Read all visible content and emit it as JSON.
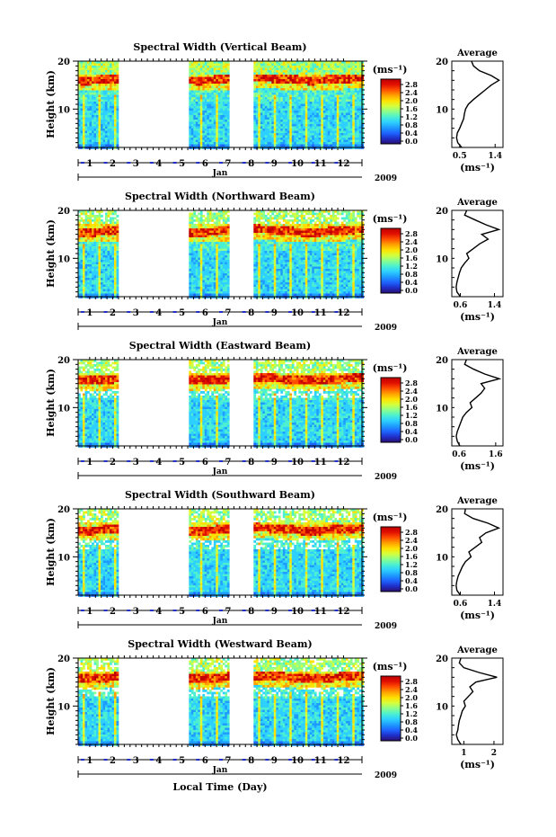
{
  "figure": {
    "xlabel": "Local Time (Day)",
    "month_label": "Jan",
    "year_label": "2009",
    "unit_label": "(ms⁻¹)",
    "average_title": "Average",
    "average_xlabel": "(ms⁻¹)",
    "ylabel": "Height (km)"
  },
  "colors": {
    "colormap": [
      "#2a0e6e",
      "#1f2fc8",
      "#1e64ff",
      "#1e9cff",
      "#2ed0ff",
      "#4cf0d0",
      "#8cff8c",
      "#d4ff3c",
      "#ffe000",
      "#ffa000",
      "#ff5000",
      "#e01000",
      "#c00000"
    ]
  },
  "chart_data": [
    {
      "type": "heatmap",
      "title": "Spectral Width (Vertical Beam)",
      "x_ticks": [
        "1",
        "2",
        "3",
        "4",
        "5",
        "6",
        "7",
        "8",
        "9",
        "10",
        "11",
        "12"
      ],
      "xlim": [
        0.5,
        12.8
      ],
      "ylim": [
        2,
        20
      ],
      "y_ticks": [
        10,
        20
      ],
      "data_segments": [
        [
          0.5,
          2.2
        ],
        [
          5.3,
          7.0
        ],
        [
          8.1,
          12.8
        ]
      ],
      "peak_layer_km": 16.5,
      "colorbar_ticks": [
        "0.0",
        "0.4",
        "0.8",
        "1.2",
        "1.6",
        "2.0",
        "2.4",
        "2.8"
      ],
      "average_profile": {
        "x_ticks": [
          "0.5",
          "1.4"
        ],
        "xlim": [
          0.3,
          1.6
        ],
        "height_km": [
          2,
          3,
          4,
          5,
          6,
          7,
          8,
          9,
          10,
          11,
          12,
          13,
          14,
          15,
          16,
          17,
          18,
          19,
          20
        ],
        "spectral_width": [
          0.55,
          0.45,
          0.42,
          0.44,
          0.5,
          0.55,
          0.6,
          0.62,
          0.65,
          0.72,
          0.85,
          1.0,
          1.15,
          1.3,
          1.5,
          1.3,
          1.0,
          0.85,
          0.8
        ]
      }
    },
    {
      "type": "heatmap",
      "title": "Spectral Width (Northward Beam)",
      "x_ticks": [
        "1",
        "2",
        "3",
        "4",
        "5",
        "6",
        "7",
        "8",
        "9",
        "10",
        "11",
        "12"
      ],
      "xlim": [
        0.5,
        12.8
      ],
      "ylim": [
        2,
        20
      ],
      "y_ticks": [
        10,
        20
      ],
      "data_segments": [
        [
          0.5,
          2.2
        ],
        [
          5.3,
          7.0
        ],
        [
          8.1,
          12.8
        ]
      ],
      "peak_layer_km": 16.0,
      "colorbar_ticks": [
        "0.0",
        "0.4",
        "0.8",
        "1.2",
        "1.6",
        "2.0",
        "2.4",
        "2.8"
      ],
      "average_profile": {
        "x_ticks": [
          "0.6",
          "1.4"
        ],
        "xlim": [
          0.4,
          1.6
        ],
        "height_km": [
          2,
          3,
          4,
          5,
          6,
          7,
          8,
          9,
          10,
          11,
          12,
          13,
          14,
          15,
          16,
          17,
          18,
          19,
          20
        ],
        "spectral_width": [
          0.6,
          0.52,
          0.5,
          0.52,
          0.55,
          0.58,
          0.62,
          0.7,
          0.8,
          0.75,
          0.9,
          1.05,
          1.25,
          1.1,
          1.5,
          1.2,
          0.95,
          0.7,
          0.75
        ]
      }
    },
    {
      "type": "heatmap",
      "title": "Spectral Width (Eastward Beam)",
      "x_ticks": [
        "1",
        "2",
        "3",
        "4",
        "5",
        "6",
        "7",
        "8",
        "9",
        "10",
        "11",
        "12"
      ],
      "xlim": [
        0.5,
        12.8
      ],
      "ylim": [
        2,
        20
      ],
      "y_ticks": [
        10,
        20
      ],
      "data_segments": [
        [
          0.5,
          2.2
        ],
        [
          5.3,
          7.0
        ],
        [
          8.1,
          12.8
        ]
      ],
      "peak_layer_km": 16.2,
      "colorbar_ticks": [
        "0.0",
        "0.4",
        "0.8",
        "1.2",
        "1.6",
        "2.0",
        "2.4",
        "2.8"
      ],
      "average_profile": {
        "x_ticks": [
          "0.6",
          "1.6"
        ],
        "xlim": [
          0.4,
          1.8
        ],
        "height_km": [
          2,
          3,
          4,
          5,
          6,
          7,
          8,
          9,
          10,
          11,
          12,
          13,
          14,
          15,
          16,
          17,
          18,
          19,
          20
        ],
        "spectral_width": [
          0.62,
          0.55,
          0.52,
          0.55,
          0.6,
          0.65,
          0.7,
          0.8,
          0.95,
          0.9,
          1.05,
          1.2,
          1.3,
          1.2,
          1.7,
          1.3,
          1.0,
          0.75,
          0.8
        ]
      }
    },
    {
      "type": "heatmap",
      "title": "Spectral Width (Southward Beam)",
      "x_ticks": [
        "1",
        "2",
        "3",
        "4",
        "5",
        "6",
        "7",
        "8",
        "9",
        "10",
        "11",
        "12"
      ],
      "xlim": [
        0.5,
        12.8
      ],
      "ylim": [
        2,
        20
      ],
      "y_ticks": [
        10,
        20
      ],
      "data_segments": [
        [
          0.5,
          2.2
        ],
        [
          5.3,
          7.0
        ],
        [
          8.1,
          12.8
        ]
      ],
      "peak_layer_km": 16.0,
      "colorbar_ticks": [
        "0.0",
        "0.4",
        "0.8",
        "1.2",
        "1.6",
        "2.0",
        "2.4",
        "2.8"
      ],
      "average_profile": {
        "x_ticks": [
          "0.6",
          "1.4"
        ],
        "xlim": [
          0.4,
          1.6
        ],
        "height_km": [
          2,
          3,
          4,
          5,
          6,
          7,
          8,
          9,
          10,
          11,
          12,
          13,
          14,
          15,
          16,
          17,
          18,
          19,
          20
        ],
        "spectral_width": [
          0.6,
          0.52,
          0.5,
          0.52,
          0.55,
          0.6,
          0.65,
          0.72,
          0.85,
          0.8,
          0.95,
          1.1,
          1.05,
          1.2,
          1.5,
          1.25,
          0.9,
          0.7,
          0.72
        ]
      }
    },
    {
      "type": "heatmap",
      "title": "Spectral Width (Westward Beam)",
      "x_ticks": [
        "1",
        "2",
        "3",
        "4",
        "5",
        "6",
        "7",
        "8",
        "9",
        "10",
        "11",
        "12"
      ],
      "xlim": [
        0.5,
        12.8
      ],
      "ylim": [
        2,
        20
      ],
      "y_ticks": [
        10,
        20
      ],
      "data_segments": [
        [
          0.5,
          2.2
        ],
        [
          5.3,
          7.0
        ],
        [
          8.1,
          12.8
        ]
      ],
      "peak_layer_km": 16.3,
      "colorbar_ticks": [
        "0.0",
        "0.4",
        "0.8",
        "1.2",
        "1.6",
        "2.0",
        "2.4",
        "2.8"
      ],
      "average_profile": {
        "x_ticks": [
          "1",
          "2"
        ],
        "xlim": [
          0.6,
          2.3
        ],
        "height_km": [
          2,
          3,
          4,
          5,
          6,
          7,
          8,
          9,
          10,
          11,
          12,
          13,
          14,
          15,
          16,
          17,
          18,
          19,
          20
        ],
        "spectral_width": [
          0.9,
          0.8,
          0.75,
          0.8,
          0.82,
          0.85,
          0.9,
          0.95,
          1.05,
          1.0,
          1.15,
          1.3,
          1.2,
          1.4,
          2.1,
          1.5,
          1.0,
          0.85,
          0.9
        ]
      }
    }
  ]
}
